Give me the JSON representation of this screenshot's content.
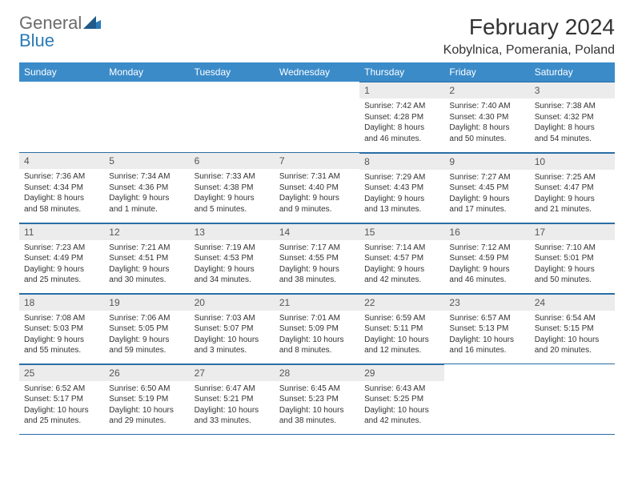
{
  "brand": {
    "text1": "General",
    "text2": "Blue"
  },
  "title": "February 2024",
  "location": "Kobylnica, Pomerania, Poland",
  "colors": {
    "header_bg": "#3b8bc9",
    "daynum_bg": "#ececec",
    "rule": "#2a6ea5",
    "logo_gray": "#6b6b6b",
    "logo_blue": "#2a7ab8"
  },
  "day_names": [
    "Sunday",
    "Monday",
    "Tuesday",
    "Wednesday",
    "Thursday",
    "Friday",
    "Saturday"
  ],
  "weeks": [
    [
      null,
      null,
      null,
      null,
      {
        "n": "1",
        "sr": "Sunrise: 7:42 AM",
        "ss": "Sunset: 4:28 PM",
        "dl": "Daylight: 8 hours and 46 minutes."
      },
      {
        "n": "2",
        "sr": "Sunrise: 7:40 AM",
        "ss": "Sunset: 4:30 PM",
        "dl": "Daylight: 8 hours and 50 minutes."
      },
      {
        "n": "3",
        "sr": "Sunrise: 7:38 AM",
        "ss": "Sunset: 4:32 PM",
        "dl": "Daylight: 8 hours and 54 minutes."
      }
    ],
    [
      {
        "n": "4",
        "sr": "Sunrise: 7:36 AM",
        "ss": "Sunset: 4:34 PM",
        "dl": "Daylight: 8 hours and 58 minutes."
      },
      {
        "n": "5",
        "sr": "Sunrise: 7:34 AM",
        "ss": "Sunset: 4:36 PM",
        "dl": "Daylight: 9 hours and 1 minute."
      },
      {
        "n": "6",
        "sr": "Sunrise: 7:33 AM",
        "ss": "Sunset: 4:38 PM",
        "dl": "Daylight: 9 hours and 5 minutes."
      },
      {
        "n": "7",
        "sr": "Sunrise: 7:31 AM",
        "ss": "Sunset: 4:40 PM",
        "dl": "Daylight: 9 hours and 9 minutes."
      },
      {
        "n": "8",
        "sr": "Sunrise: 7:29 AM",
        "ss": "Sunset: 4:43 PM",
        "dl": "Daylight: 9 hours and 13 minutes."
      },
      {
        "n": "9",
        "sr": "Sunrise: 7:27 AM",
        "ss": "Sunset: 4:45 PM",
        "dl": "Daylight: 9 hours and 17 minutes."
      },
      {
        "n": "10",
        "sr": "Sunrise: 7:25 AM",
        "ss": "Sunset: 4:47 PM",
        "dl": "Daylight: 9 hours and 21 minutes."
      }
    ],
    [
      {
        "n": "11",
        "sr": "Sunrise: 7:23 AM",
        "ss": "Sunset: 4:49 PM",
        "dl": "Daylight: 9 hours and 25 minutes."
      },
      {
        "n": "12",
        "sr": "Sunrise: 7:21 AM",
        "ss": "Sunset: 4:51 PM",
        "dl": "Daylight: 9 hours and 30 minutes."
      },
      {
        "n": "13",
        "sr": "Sunrise: 7:19 AM",
        "ss": "Sunset: 4:53 PM",
        "dl": "Daylight: 9 hours and 34 minutes."
      },
      {
        "n": "14",
        "sr": "Sunrise: 7:17 AM",
        "ss": "Sunset: 4:55 PM",
        "dl": "Daylight: 9 hours and 38 minutes."
      },
      {
        "n": "15",
        "sr": "Sunrise: 7:14 AM",
        "ss": "Sunset: 4:57 PM",
        "dl": "Daylight: 9 hours and 42 minutes."
      },
      {
        "n": "16",
        "sr": "Sunrise: 7:12 AM",
        "ss": "Sunset: 4:59 PM",
        "dl": "Daylight: 9 hours and 46 minutes."
      },
      {
        "n": "17",
        "sr": "Sunrise: 7:10 AM",
        "ss": "Sunset: 5:01 PM",
        "dl": "Daylight: 9 hours and 50 minutes."
      }
    ],
    [
      {
        "n": "18",
        "sr": "Sunrise: 7:08 AM",
        "ss": "Sunset: 5:03 PM",
        "dl": "Daylight: 9 hours and 55 minutes."
      },
      {
        "n": "19",
        "sr": "Sunrise: 7:06 AM",
        "ss": "Sunset: 5:05 PM",
        "dl": "Daylight: 9 hours and 59 minutes."
      },
      {
        "n": "20",
        "sr": "Sunrise: 7:03 AM",
        "ss": "Sunset: 5:07 PM",
        "dl": "Daylight: 10 hours and 3 minutes."
      },
      {
        "n": "21",
        "sr": "Sunrise: 7:01 AM",
        "ss": "Sunset: 5:09 PM",
        "dl": "Daylight: 10 hours and 8 minutes."
      },
      {
        "n": "22",
        "sr": "Sunrise: 6:59 AM",
        "ss": "Sunset: 5:11 PM",
        "dl": "Daylight: 10 hours and 12 minutes."
      },
      {
        "n": "23",
        "sr": "Sunrise: 6:57 AM",
        "ss": "Sunset: 5:13 PM",
        "dl": "Daylight: 10 hours and 16 minutes."
      },
      {
        "n": "24",
        "sr": "Sunrise: 6:54 AM",
        "ss": "Sunset: 5:15 PM",
        "dl": "Daylight: 10 hours and 20 minutes."
      }
    ],
    [
      {
        "n": "25",
        "sr": "Sunrise: 6:52 AM",
        "ss": "Sunset: 5:17 PM",
        "dl": "Daylight: 10 hours and 25 minutes."
      },
      {
        "n": "26",
        "sr": "Sunrise: 6:50 AM",
        "ss": "Sunset: 5:19 PM",
        "dl": "Daylight: 10 hours and 29 minutes."
      },
      {
        "n": "27",
        "sr": "Sunrise: 6:47 AM",
        "ss": "Sunset: 5:21 PM",
        "dl": "Daylight: 10 hours and 33 minutes."
      },
      {
        "n": "28",
        "sr": "Sunrise: 6:45 AM",
        "ss": "Sunset: 5:23 PM",
        "dl": "Daylight: 10 hours and 38 minutes."
      },
      {
        "n": "29",
        "sr": "Sunrise: 6:43 AM",
        "ss": "Sunset: 5:25 PM",
        "dl": "Daylight: 10 hours and 42 minutes."
      },
      null,
      null
    ]
  ]
}
